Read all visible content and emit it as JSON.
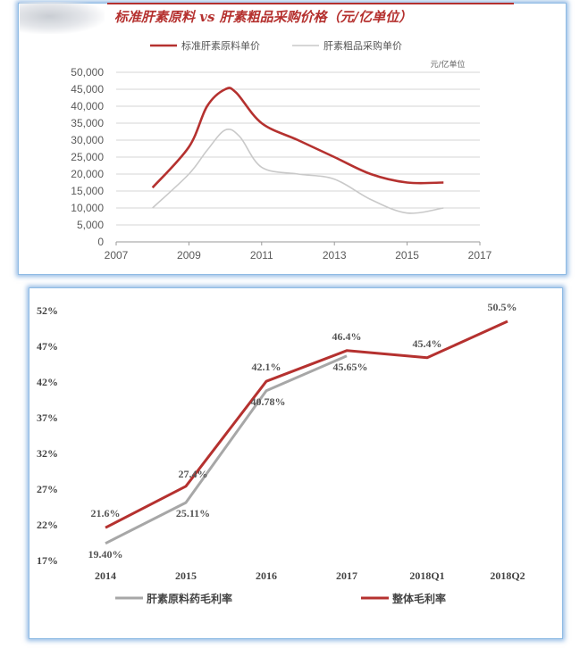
{
  "chart_data": [
    {
      "type": "line",
      "title": "标准肝素原料 vs 肝素粗品采购价格（元/亿单位）",
      "unit_label": "元/亿单位",
      "xlim": [
        2007,
        2017
      ],
      "ylim": [
        0,
        50000
      ],
      "x_ticks": [
        "2007",
        "2009",
        "2011",
        "2013",
        "2015",
        "2017"
      ],
      "y_ticks": [
        "0",
        "5,000",
        "10,000",
        "15,000",
        "20,000",
        "25,000",
        "30,000",
        "35,000",
        "40,000",
        "45,000",
        "50,000"
      ],
      "grid": true,
      "legend_position": "top",
      "series": [
        {
          "name": "标准肝素原料单价",
          "color": "#b5312f",
          "x": [
            2008,
            2009,
            2009.5,
            2010,
            2010.3,
            2011,
            2012,
            2013,
            2014,
            2015,
            2016
          ],
          "y": [
            16000,
            28000,
            40000,
            45000,
            44000,
            35000,
            30000,
            25000,
            20000,
            17500,
            17500
          ]
        },
        {
          "name": "肝素粗品采购单价",
          "color": "#c9c9c9",
          "x": [
            2008,
            2009,
            2009.5,
            2010,
            2010.4,
            2011,
            2012,
            2013,
            2014,
            2015,
            2016
          ],
          "y": [
            10000,
            20000,
            27000,
            33000,
            31000,
            22000,
            20000,
            18500,
            12500,
            8500,
            10000
          ]
        }
      ]
    },
    {
      "type": "line",
      "categories": [
        "2014",
        "2015",
        "2016",
        "2017",
        "2018Q1",
        "2018Q2"
      ],
      "y_ticks": [
        "17%",
        "22%",
        "27%",
        "32%",
        "37%",
        "42%",
        "47%",
        "52%"
      ],
      "ylim": [
        17,
        52
      ],
      "legend_position": "bottom",
      "series": [
        {
          "name": "肝素原料药毛利率",
          "color": "#a7a7a7",
          "values": [
            19.4,
            25.11,
            40.78,
            45.65,
            null,
            null
          ],
          "labels": [
            "19.40%",
            "25.11%",
            "40.78%",
            "45.65%",
            "",
            ""
          ]
        },
        {
          "name": "整体毛利率",
          "color": "#b5312f",
          "values": [
            21.6,
            27.4,
            42.1,
            46.4,
            45.4,
            50.5
          ],
          "labels": [
            "21.6%",
            "27.4%",
            "42.1%",
            "46.4%",
            "45.4%",
            "50.5%"
          ]
        }
      ]
    }
  ]
}
